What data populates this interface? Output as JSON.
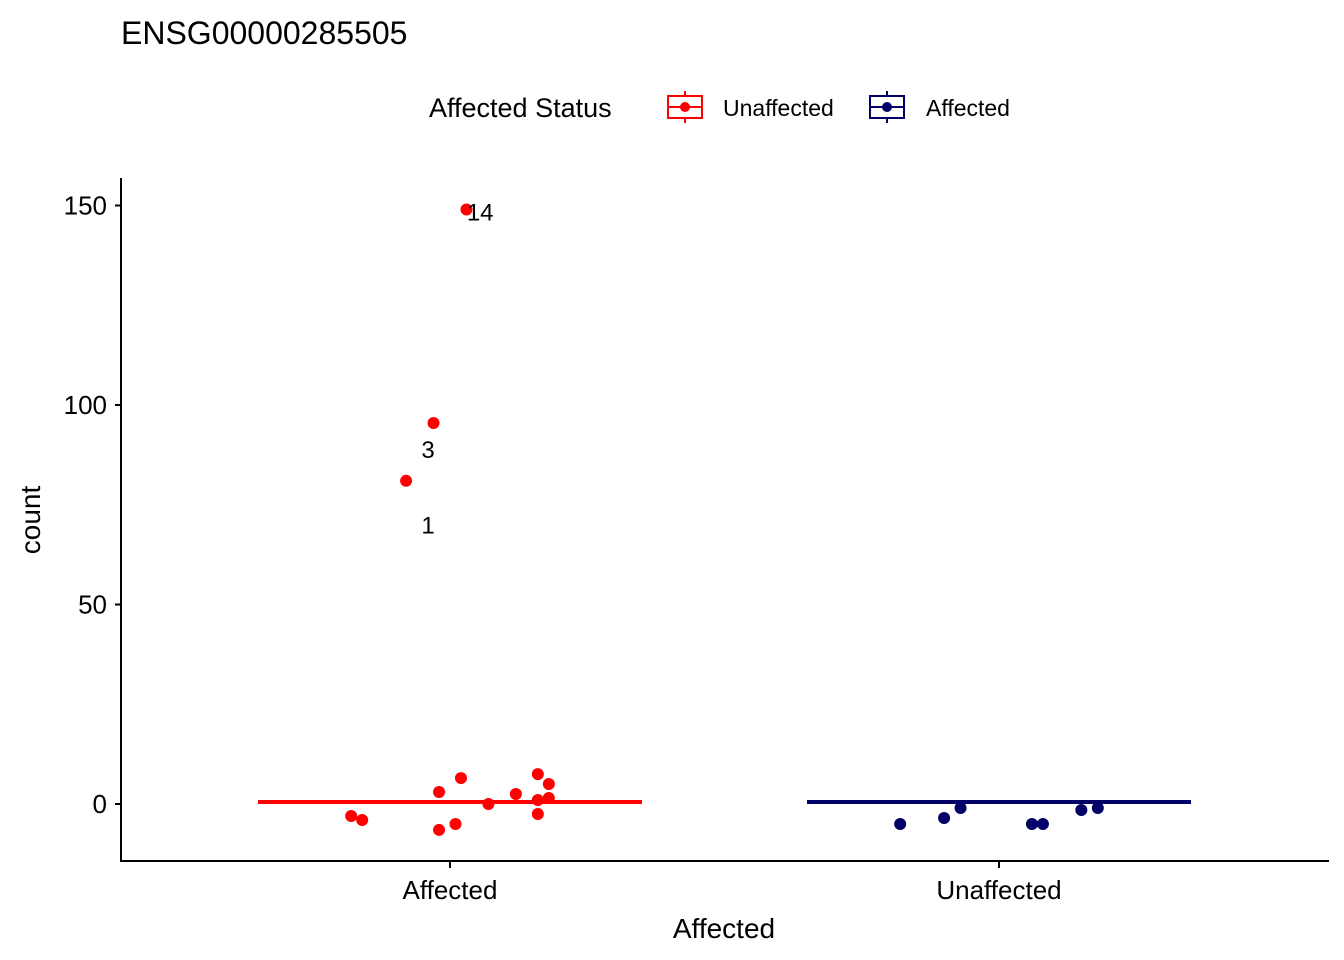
{
  "colors": {
    "unaffected": "#FF0000",
    "affected": "#000066",
    "axis": "#000000",
    "background": "#FFFFFF"
  },
  "chart_data": {
    "type": "scatter",
    "title": "ENSG00000285505",
    "xlabel": "Affected",
    "ylabel": "count",
    "categories": [
      "Affected",
      "Unaffected"
    ],
    "ylim": [
      -19,
      157
    ],
    "yticks": [
      0,
      50,
      100,
      150
    ],
    "grid": false,
    "legend": {
      "title": "Affected Status",
      "placement": "top",
      "entries": [
        {
          "label": "Unaffected",
          "color": "#FF0000"
        },
        {
          "label": "Affected",
          "color": "#000066"
        }
      ]
    },
    "series": [
      {
        "name": "Unaffected",
        "category": "Affected",
        "color": "#FF0000",
        "median": 0.5,
        "points": [
          {
            "x": 0.03,
            "y": 149.0
          },
          {
            "x": -0.03,
            "y": 95.5
          },
          {
            "x": -0.08,
            "y": 81.0
          },
          {
            "x": -0.18,
            "y": -3.0
          },
          {
            "x": -0.16,
            "y": -4.0
          },
          {
            "x": -0.02,
            "y": 3.0
          },
          {
            "x": 0.02,
            "y": 6.5
          },
          {
            "x": 0.07,
            "y": 0.0
          },
          {
            "x": 0.12,
            "y": 2.5
          },
          {
            "x": 0.16,
            "y": 7.5
          },
          {
            "x": 0.18,
            "y": 5.0
          },
          {
            "x": 0.16,
            "y": 1.0
          },
          {
            "x": 0.18,
            "y": 1.5
          },
          {
            "x": 0.16,
            "y": -2.5
          },
          {
            "x": -0.02,
            "y": -6.5
          },
          {
            "x": 0.01,
            "y": -5.0
          }
        ]
      },
      {
        "name": "Affected",
        "category": "Unaffected",
        "color": "#000066",
        "median": 0.5,
        "points": [
          {
            "x": -0.18,
            "y": -5.0
          },
          {
            "x": -0.1,
            "y": -3.5
          },
          {
            "x": -0.07,
            "y": -1.0
          },
          {
            "x": 0.06,
            "y": -5.0
          },
          {
            "x": 0.08,
            "y": -5.0
          },
          {
            "x": 0.15,
            "y": -1.5
          },
          {
            "x": 0.18,
            "y": -1.0
          }
        ]
      }
    ],
    "annotations": [
      {
        "text": "14",
        "x_category": "Affected",
        "x_offset": 0.055,
        "y": 148.5
      },
      {
        "text": "3",
        "x_category": "Affected",
        "x_offset": -0.04,
        "y": 89
      },
      {
        "text": "1",
        "x_category": "Affected",
        "x_offset": -0.04,
        "y": 70
      }
    ]
  }
}
